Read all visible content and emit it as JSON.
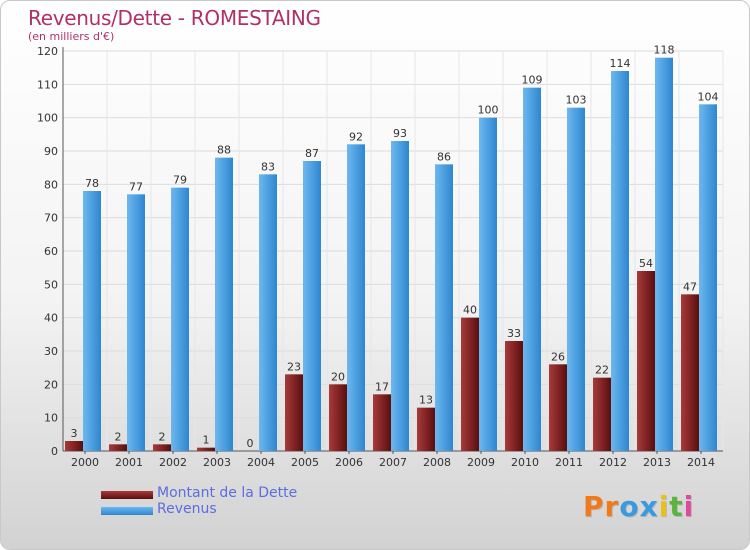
{
  "title": "Revenus/Dette - ROMESTAING",
  "subtitle": "(en milliers d'€)",
  "logo": {
    "text": "Proxiti",
    "letters": [
      "P",
      "r",
      "o",
      "x",
      "i",
      "t",
      "i"
    ]
  },
  "colors": {
    "title": "#b0306a",
    "dette": "#7a1a1a",
    "revenus": "#4aa3e8",
    "legend_text": "#5a6ee0",
    "logo_letters": [
      "#f07a1a",
      "#f07a1a",
      "#3a9ae0",
      "#3a9ae0",
      "#e8c21a",
      "#5ab540",
      "#e04a9a"
    ]
  },
  "chart_data": {
    "type": "bar",
    "categories": [
      "2000",
      "2001",
      "2002",
      "2003",
      "2004",
      "2005",
      "2006",
      "2007",
      "2008",
      "2009",
      "2010",
      "2011",
      "2012",
      "2013",
      "2014"
    ],
    "series": [
      {
        "name": "Montant de la Dette",
        "values": [
          3,
          2,
          2,
          1,
          0,
          23,
          20,
          17,
          13,
          40,
          33,
          26,
          22,
          54,
          47
        ]
      },
      {
        "name": "Revenus",
        "values": [
          78,
          77,
          79,
          88,
          83,
          87,
          92,
          93,
          86,
          100,
          109,
          103,
          114,
          118,
          104
        ]
      }
    ],
    "ylim": [
      0,
      120
    ],
    "yticks": [
      0,
      10,
      20,
      30,
      40,
      50,
      60,
      70,
      80,
      90,
      100,
      110,
      120
    ],
    "grid": true,
    "legend_position": "bottom-left"
  }
}
